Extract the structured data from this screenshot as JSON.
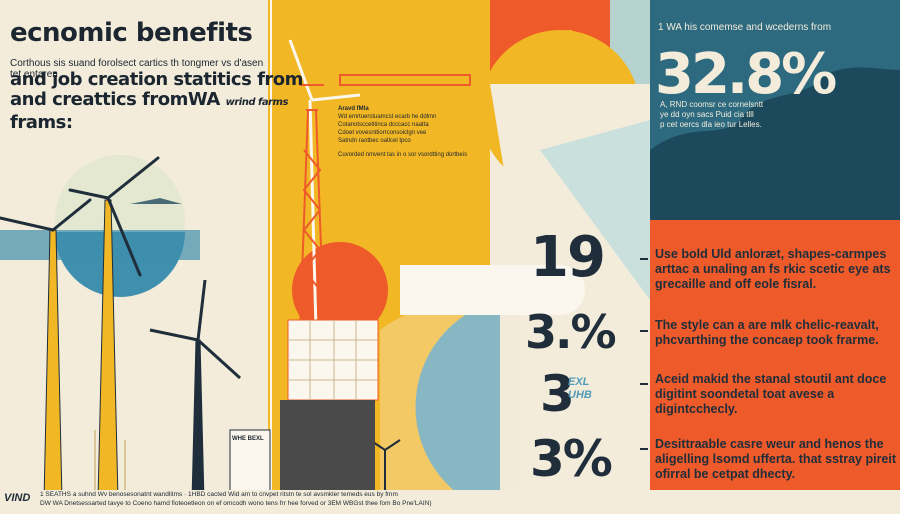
{
  "header": {
    "title": "ecnomic benefits",
    "intro": "Corthous sis suand forolsect cartics th tongmer vs d'asen tet entaren",
    "subtitle_line1": "and job creation statitics from",
    "subtitle_line2": "and creattics fromWA",
    "subtitle_wind_farms": "wrind farms",
    "subtitle_line3": "frams:"
  },
  "crane_note": {
    "heading": "Aravd fMla",
    "lines": [
      "Wd emrtuerstuamcst ecarb he ddlmn",
      "Cotanotsccetitinca dcccacc naatta",
      "Cdoet vovesnttiorrconsoiclgn vee",
      "Satndn raotbec oatlcel tpco",
      "Cuvorded nmvent tas in o sor vsordtting dortbeis"
    ]
  },
  "top_right": {
    "caption": "1 WA his comemse and wcederns from",
    "big_stat": "32.8%",
    "note_lines": [
      "A, RND coomsr ce cornelsntt",
      "ye dd oyn sacs Puid cia tlll",
      "p cet oercs dla ieo tur Lelles."
    ]
  },
  "stats": [
    {
      "value": "19",
      "desc": "Use bold Uld anloræt, shapes-carmpes arttac a unaling an fs rkic scetic eye ats grecaille and off eole fisral."
    },
    {
      "value": "3.%",
      "desc": "The style can a are mlk chelic-reavalt, phcvarthing the concaep took frarme."
    },
    {
      "value": "3",
      "badge_top": "EXL",
      "badge_bottom": "UHB",
      "desc": "Aceid makid the stanal stoutil ant doce digitint soondetal toat avese a digintcchecly."
    },
    {
      "value": "3%",
      "desc": "Desittraable casre weur and henos the aligelling lsomd ufferta. that sstray pireit ofirral be cetpat dhecty."
    }
  ],
  "building_sign": "WHE BEXL",
  "footer": {
    "logo": "VIND",
    "line1": "1 SEATHS a suhnd Wv benosesonatnt wandlitms · 1HBD cacted Wid am to cnvpet ritstn te sol avsmkler temeds eus by fmm",
    "line2": "DW WA Dnetsessarted tavye to Coeno hamd fioteoetleon on ef omcodh wono tens frr hee forved or 3EM WBGst thee fom Bo Pne'LAIN)"
  },
  "colors": {
    "yellow": "#f2b725",
    "orange": "#ee5a2a",
    "teal": "#2d6a80",
    "sky": "#4f9bb8",
    "cream": "#f3ecdb",
    "navy": "#1f2e3a"
  }
}
